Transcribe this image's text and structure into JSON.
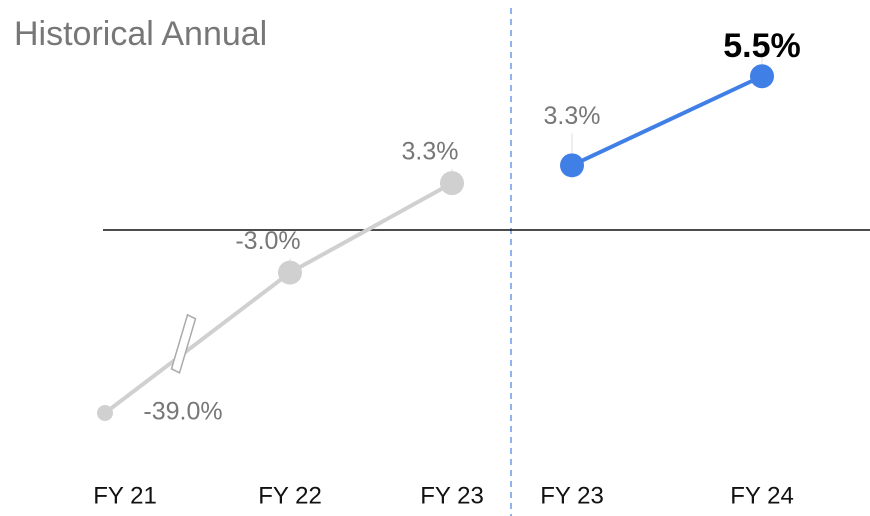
{
  "chart_data": {
    "type": "line",
    "title": "Historical Annual",
    "categories": [
      "FY 21",
      "FY 22",
      "FY 23",
      "FY 23",
      "FY 24"
    ],
    "axis_break": true,
    "series": [
      {
        "name": null,
        "color": "#d0d0d0",
        "values": [
          -39.0,
          -3.0,
          3.3,
          null,
          null
        ],
        "value_labels": [
          "-39.0%",
          "-3.0%",
          "3.3%",
          null,
          null
        ]
      },
      {
        "name": null,
        "color": "#3f7fe6",
        "axis": "y2",
        "values": [
          null,
          null,
          null,
          3.3,
          5.5
        ],
        "value_labels": [
          null,
          null,
          null,
          "3.3%",
          "5.5%"
        ]
      }
    ]
  }
}
